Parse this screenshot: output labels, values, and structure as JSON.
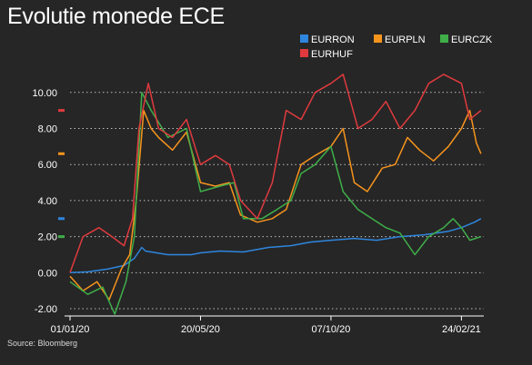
{
  "title": "Evolutie monede ECE",
  "source": "Source: Bloomberg",
  "chart_data": {
    "type": "line",
    "title": "Evolutie monede ECE",
    "xlabel": "",
    "ylabel": "",
    "x_ticks": [
      "01/01/20",
      "20/05/20",
      "07/10/20",
      "24/02/21"
    ],
    "y_ticks": [
      "-2.00",
      "0.00",
      "2.00",
      "4.00",
      "6.00",
      "8.00",
      "10.00"
    ],
    "ylim": [
      -2.4,
      11.6
    ],
    "x_range": [
      "2020-01-01",
      "2021-03-20"
    ],
    "grid": "horizontal dotted",
    "legend_position": "top-right",
    "series": [
      {
        "name": "EURRON",
        "color": "#2e86de",
        "points": [
          [
            "2020-01-01",
            0.0
          ],
          [
            "2020-01-20",
            0.05
          ],
          [
            "2020-02-10",
            0.2
          ],
          [
            "2020-02-28",
            0.4
          ],
          [
            "2020-03-10",
            0.8
          ],
          [
            "2020-03-18",
            1.4
          ],
          [
            "2020-03-22",
            1.2
          ],
          [
            "2020-04-15",
            1.0
          ],
          [
            "2020-05-10",
            1.0
          ],
          [
            "2020-05-20",
            1.1
          ],
          [
            "2020-06-10",
            1.2
          ],
          [
            "2020-07-05",
            1.15
          ],
          [
            "2020-08-01",
            1.4
          ],
          [
            "2020-08-25",
            1.5
          ],
          [
            "2020-09-15",
            1.7
          ],
          [
            "2020-10-07",
            1.8
          ],
          [
            "2020-11-01",
            1.9
          ],
          [
            "2020-11-25",
            1.8
          ],
          [
            "2020-12-20",
            2.0
          ],
          [
            "2021-01-15",
            2.1
          ],
          [
            "2021-02-10",
            2.3
          ],
          [
            "2021-02-24",
            2.5
          ],
          [
            "2021-03-10",
            2.8
          ],
          [
            "2021-03-17",
            3.0
          ]
        ]
      },
      {
        "name": "EURPLN",
        "color": "#f7941d",
        "points": [
          [
            "2020-01-01",
            -0.2
          ],
          [
            "2020-01-15",
            -1.0
          ],
          [
            "2020-01-30",
            -0.5
          ],
          [
            "2020-02-12",
            -1.5
          ],
          [
            "2020-02-25",
            0.2
          ],
          [
            "2020-03-05",
            1.0
          ],
          [
            "2020-03-12",
            4.0
          ],
          [
            "2020-03-20",
            9.0
          ],
          [
            "2020-03-28",
            8.0
          ],
          [
            "2020-04-05",
            7.5
          ],
          [
            "2020-04-20",
            6.8
          ],
          [
            "2020-05-05",
            7.8
          ],
          [
            "2020-05-20",
            5.0
          ],
          [
            "2020-06-05",
            4.8
          ],
          [
            "2020-06-20",
            5.0
          ],
          [
            "2020-07-02",
            3.2
          ],
          [
            "2020-07-20",
            2.8
          ],
          [
            "2020-08-05",
            3.0
          ],
          [
            "2020-08-20",
            3.5
          ],
          [
            "2020-09-05",
            6.0
          ],
          [
            "2020-09-20",
            6.5
          ],
          [
            "2020-10-07",
            7.0
          ],
          [
            "2020-10-20",
            8.0
          ],
          [
            "2020-11-01",
            5.0
          ],
          [
            "2020-11-15",
            4.5
          ],
          [
            "2020-12-01",
            5.8
          ],
          [
            "2020-12-15",
            6.0
          ],
          [
            "2020-12-28",
            7.5
          ],
          [
            "2021-01-10",
            6.8
          ],
          [
            "2021-01-25",
            6.2
          ],
          [
            "2021-02-10",
            7.0
          ],
          [
            "2021-02-24",
            8.0
          ],
          [
            "2021-03-05",
            9.0
          ],
          [
            "2021-03-12",
            7.2
          ],
          [
            "2021-03-17",
            6.6
          ]
        ]
      },
      {
        "name": "EURCZK",
        "color": "#3fae49",
        "points": [
          [
            "2020-01-01",
            -0.5
          ],
          [
            "2020-01-20",
            -1.2
          ],
          [
            "2020-02-05",
            -0.8
          ],
          [
            "2020-02-18",
            -2.3
          ],
          [
            "2020-03-01",
            -0.5
          ],
          [
            "2020-03-10",
            2.0
          ],
          [
            "2020-03-18",
            10.0
          ],
          [
            "2020-03-28",
            9.0
          ],
          [
            "2020-04-15",
            7.5
          ],
          [
            "2020-05-05",
            8.0
          ],
          [
            "2020-05-20",
            4.5
          ],
          [
            "2020-06-10",
            4.8
          ],
          [
            "2020-06-25",
            5.0
          ],
          [
            "2020-07-05",
            3.0
          ],
          [
            "2020-07-25",
            3.0
          ],
          [
            "2020-08-10",
            3.5
          ],
          [
            "2020-08-25",
            4.0
          ],
          [
            "2020-09-05",
            5.5
          ],
          [
            "2020-09-20",
            6.0
          ],
          [
            "2020-10-07",
            7.0
          ],
          [
            "2020-10-20",
            4.5
          ],
          [
            "2020-11-05",
            3.5
          ],
          [
            "2020-11-20",
            3.0
          ],
          [
            "2020-12-05",
            2.5
          ],
          [
            "2020-12-20",
            2.2
          ],
          [
            "2021-01-05",
            1.0
          ],
          [
            "2021-01-20",
            2.0
          ],
          [
            "2021-02-05",
            2.5
          ],
          [
            "2021-02-15",
            3.0
          ],
          [
            "2021-02-24",
            2.5
          ],
          [
            "2021-03-05",
            1.8
          ],
          [
            "2021-03-17",
            2.0
          ]
        ]
      },
      {
        "name": "EURHUF",
        "color": "#e03a3e",
        "points": [
          [
            "2020-01-01",
            0.0
          ],
          [
            "2020-01-15",
            2.0
          ],
          [
            "2020-02-01",
            2.5
          ],
          [
            "2020-02-15",
            2.0
          ],
          [
            "2020-02-28",
            1.5
          ],
          [
            "2020-03-08",
            3.0
          ],
          [
            "2020-03-15",
            8.0
          ],
          [
            "2020-03-25",
            10.5
          ],
          [
            "2020-04-05",
            8.0
          ],
          [
            "2020-04-20",
            7.5
          ],
          [
            "2020-05-05",
            8.5
          ],
          [
            "2020-05-20",
            6.0
          ],
          [
            "2020-06-05",
            6.5
          ],
          [
            "2020-06-20",
            6.0
          ],
          [
            "2020-07-02",
            4.0
          ],
          [
            "2020-07-20",
            3.0
          ],
          [
            "2020-08-05",
            5.0
          ],
          [
            "2020-08-20",
            9.0
          ],
          [
            "2020-09-05",
            8.5
          ],
          [
            "2020-09-20",
            10.0
          ],
          [
            "2020-10-07",
            10.5
          ],
          [
            "2020-10-20",
            11.0
          ],
          [
            "2020-11-05",
            8.0
          ],
          [
            "2020-11-20",
            8.5
          ],
          [
            "2020-12-05",
            9.5
          ],
          [
            "2020-12-20",
            8.0
          ],
          [
            "2021-01-05",
            9.0
          ],
          [
            "2021-01-20",
            10.5
          ],
          [
            "2021-02-05",
            11.0
          ],
          [
            "2021-02-24",
            10.5
          ],
          [
            "2021-03-05",
            8.5
          ],
          [
            "2021-03-17",
            9.0
          ]
        ]
      }
    ]
  }
}
